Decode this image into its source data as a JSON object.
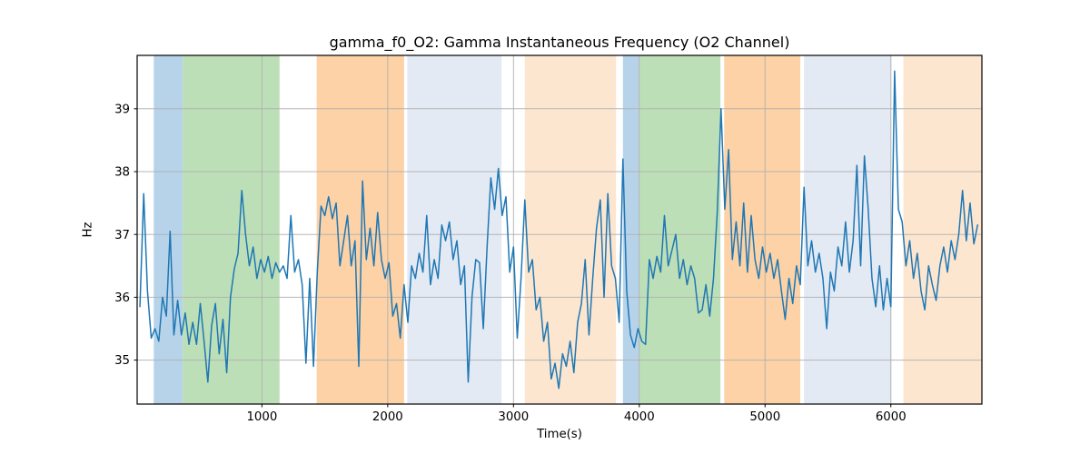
{
  "figure": {
    "title": "gamma_f0_O2: Gamma Instantaneous Frequency (O2 Channel)",
    "xlabel": "Time(s)",
    "ylabel": "Hz"
  },
  "chart_data": {
    "type": "line",
    "title": "gamma_f0_O2: Gamma Instantaneous Frequency (O2 Channel)",
    "xlabel": "Time(s)",
    "ylabel": "Hz",
    "xlim": [
      8,
      6724
    ],
    "ylim": [
      34.3,
      39.85
    ],
    "xticks": [
      1000,
      2000,
      3000,
      4000,
      5000,
      6000
    ],
    "yticks": [
      35,
      36,
      37,
      38,
      39
    ],
    "grid": true,
    "legend_position": "none",
    "colors": {
      "line": "#1f77b4",
      "grid": "#b0b0b0",
      "spine": "#000000",
      "band_blue": "#b7d3ea",
      "band_green": "#bddfb7",
      "band_orange": "#fcd2a6",
      "band_lightblue": "#e3eaf4",
      "band_paleorange": "#fde6cf"
    },
    "bands": [
      {
        "x_start": 140,
        "x_end": 370,
        "color": "#b7d3ea",
        "name": "blue-band-1"
      },
      {
        "x_start": 370,
        "x_end": 1140,
        "color": "#bddfb7",
        "name": "green-band-1"
      },
      {
        "x_start": 1435,
        "x_end": 2130,
        "color": "#fcd2a6",
        "name": "orange-band-1"
      },
      {
        "x_start": 2155,
        "x_end": 2905,
        "color": "#e3eaf4",
        "name": "lightblue-band-1"
      },
      {
        "x_start": 3090,
        "x_end": 3815,
        "color": "#fde6cf",
        "name": "paleorange-band-1"
      },
      {
        "x_start": 3870,
        "x_end": 4000,
        "color": "#b7d3ea",
        "name": "blue-band-2"
      },
      {
        "x_start": 4000,
        "x_end": 4645,
        "color": "#bddfb7",
        "name": "green-band-2"
      },
      {
        "x_start": 4675,
        "x_end": 5280,
        "color": "#fcd2a6",
        "name": "orange-band-2"
      },
      {
        "x_start": 5310,
        "x_end": 6005,
        "color": "#e3eaf4",
        "name": "lightblue-band-2"
      },
      {
        "x_start": 6100,
        "x_end": 6724,
        "color": "#fde6cf",
        "name": "paleorange-band-2"
      }
    ],
    "series": [
      {
        "name": "gamma_f0_O2",
        "color": "#1f77b4",
        "x_start": 30,
        "x_step": 30,
        "values": [
          35.85,
          37.65,
          36.1,
          35.35,
          35.5,
          35.3,
          36.0,
          35.7,
          37.05,
          35.4,
          35.95,
          35.4,
          35.75,
          35.25,
          35.6,
          35.25,
          35.9,
          35.3,
          34.65,
          35.55,
          35.9,
          35.1,
          35.65,
          34.8,
          36.0,
          36.45,
          36.7,
          37.7,
          37.0,
          36.5,
          36.8,
          36.3,
          36.6,
          36.4,
          36.65,
          36.3,
          36.55,
          36.4,
          36.5,
          36.3,
          37.3,
          36.4,
          36.6,
          36.2,
          34.95,
          36.3,
          34.9,
          36.4,
          37.45,
          37.3,
          37.6,
          37.25,
          37.5,
          36.5,
          36.9,
          37.3,
          36.5,
          36.9,
          34.9,
          37.85,
          36.6,
          37.1,
          36.5,
          37.35,
          36.6,
          36.3,
          36.55,
          35.7,
          35.9,
          35.35,
          36.2,
          35.6,
          36.5,
          36.3,
          36.7,
          36.4,
          37.3,
          36.2,
          36.6,
          36.3,
          37.15,
          36.9,
          37.2,
          36.6,
          36.9,
          36.2,
          36.5,
          34.65,
          36.0,
          36.6,
          36.55,
          35.5,
          36.8,
          37.9,
          37.4,
          38.05,
          37.3,
          37.6,
          36.4,
          36.8,
          35.35,
          36.3,
          37.55,
          36.4,
          36.6,
          35.8,
          36.0,
          35.3,
          35.6,
          34.7,
          34.95,
          34.55,
          35.1,
          34.9,
          35.3,
          34.8,
          35.6,
          35.9,
          36.6,
          35.4,
          36.3,
          37.1,
          37.55,
          36.0,
          37.65,
          36.5,
          36.3,
          35.6,
          38.2,
          36.1,
          35.4,
          35.2,
          35.5,
          35.3,
          35.25,
          36.6,
          36.3,
          36.65,
          36.4,
          37.3,
          36.5,
          36.75,
          37.0,
          36.3,
          36.6,
          36.2,
          36.5,
          36.3,
          35.75,
          35.8,
          36.2,
          35.7,
          36.3,
          37.35,
          39.0,
          37.4,
          38.35,
          36.6,
          37.2,
          36.5,
          37.5,
          36.4,
          37.3,
          36.6,
          36.3,
          36.8,
          36.4,
          36.7,
          36.3,
          36.6,
          36.1,
          35.65,
          36.3,
          35.9,
          36.5,
          36.2,
          37.75,
          36.5,
          36.9,
          36.4,
          36.7,
          36.3,
          35.5,
          36.4,
          36.1,
          36.8,
          36.5,
          37.2,
          36.4,
          36.9,
          38.1,
          36.5,
          38.25,
          37.4,
          36.3,
          35.85,
          36.5,
          35.8,
          36.3,
          35.85,
          39.6,
          37.4,
          37.2,
          36.5,
          36.9,
          36.3,
          36.7,
          36.1,
          35.8,
          36.5,
          36.2,
          35.95,
          36.5,
          36.8,
          36.4,
          36.9,
          36.6,
          37.0,
          37.7,
          36.9,
          37.5,
          36.85,
          37.15
        ]
      }
    ]
  }
}
